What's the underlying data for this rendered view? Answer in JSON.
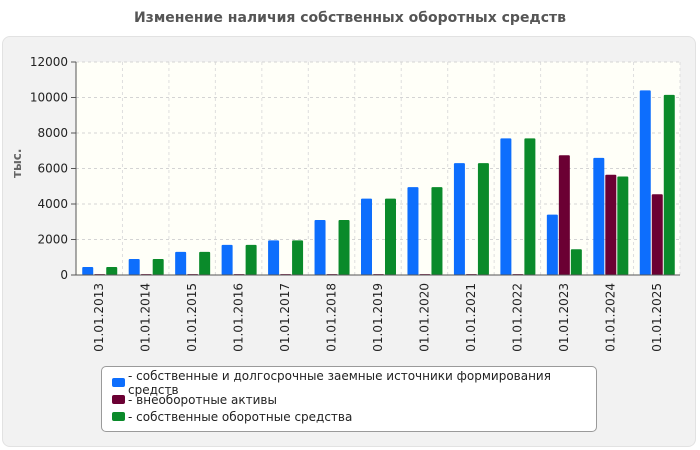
{
  "page": {
    "title": "Изменение наличия собственных оборотных средств"
  },
  "chart_data": {
    "type": "bar",
    "title": "Изменение наличия собственных оборотных средств",
    "xlabel": "",
    "ylabel": "тыс.",
    "ylim": [
      0,
      12000
    ],
    "yticks": [
      0,
      2000,
      4000,
      6000,
      8000,
      10000,
      12000
    ],
    "grid": true,
    "legend_position": "bottom",
    "categories": [
      "01.01.2013",
      "01.01.2014",
      "01.01.2015",
      "01.01.2016",
      "01.01.2017",
      "01.01.2018",
      "01.01.2019",
      "01.01.2020",
      "01.01.2021",
      "01.01.2022",
      "01.01.2023",
      "01.01.2024",
      "01.01.2025"
    ],
    "series": [
      {
        "name": "- собственные и долгосрочные заемные источники формирования средств",
        "color": "#0d6efd",
        "values": [
          450,
          900,
          1300,
          1700,
          1950,
          3100,
          4300,
          4950,
          6300,
          7700,
          3400,
          6600,
          10400
        ]
      },
      {
        "name": "- внеоборотные активы",
        "color": "#6b0033",
        "values": [
          50,
          50,
          50,
          50,
          50,
          50,
          50,
          50,
          50,
          50,
          6750,
          5650,
          4550
        ]
      },
      {
        "name": "- собственные оборотные средства",
        "color": "#0a8a2a",
        "values": [
          450,
          900,
          1300,
          1700,
          1950,
          3100,
          4300,
          4950,
          6300,
          7700,
          1450,
          5550,
          10150
        ]
      }
    ]
  }
}
